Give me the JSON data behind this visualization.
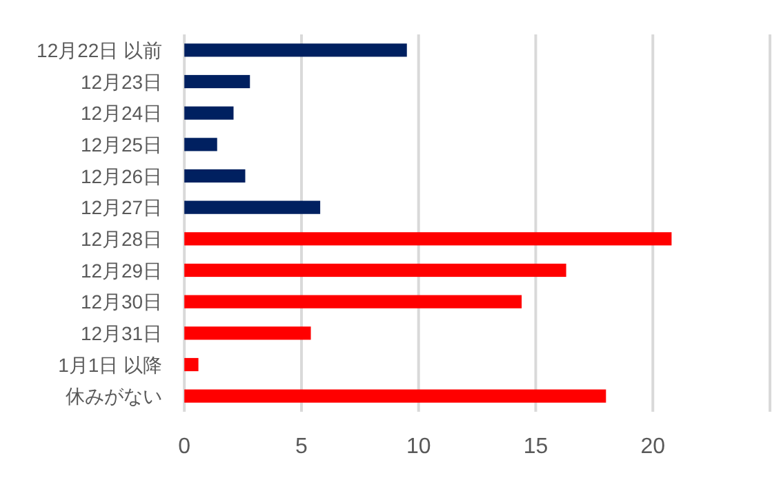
{
  "chart_data": {
    "type": "bar",
    "orientation": "horizontal",
    "categories": [
      "12月22日 以前",
      "12月23日",
      "12月24日",
      "12月25日",
      "12月26日",
      "12月27日",
      "12月28日",
      "12月29日",
      "12月30日",
      "12月31日",
      "1月1日 以降",
      "休みがない"
    ],
    "values": [
      9.5,
      2.8,
      2.1,
      1.4,
      2.6,
      5.8,
      20.8,
      16.3,
      14.4,
      5.4,
      0.6,
      18.0
    ],
    "colors": [
      "#002060",
      "#002060",
      "#002060",
      "#002060",
      "#002060",
      "#002060",
      "#ff0000",
      "#ff0000",
      "#ff0000",
      "#ff0000",
      "#ff0000",
      "#ff0000"
    ],
    "xlim": [
      0,
      25
    ],
    "xticks": [
      0,
      5,
      10,
      15,
      20,
      {
        "value": 25,
        "label": null
      }
    ],
    "grid": "x"
  }
}
